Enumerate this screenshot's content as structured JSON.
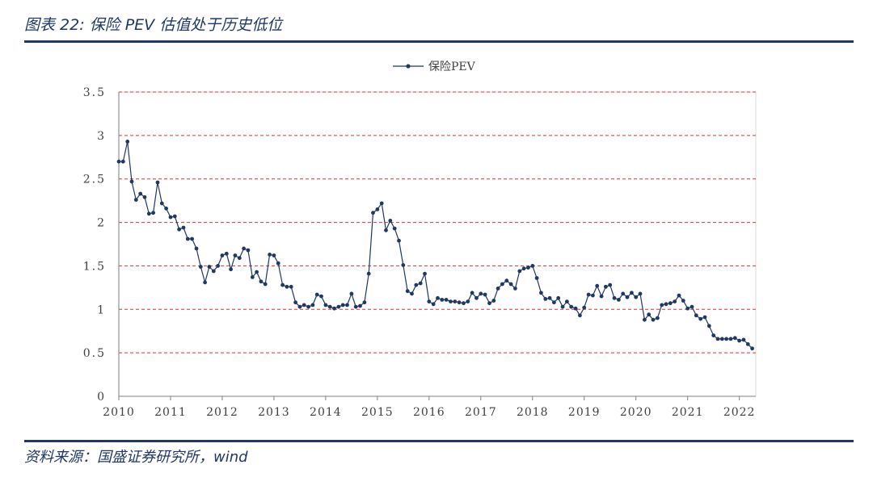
{
  "figure": {
    "title": "图表 22: 保险 PEV 估值处于历史低位",
    "source": "资料来源：国盛证券研究所，wind"
  },
  "colors": {
    "series": "#1f3864",
    "gridline": "#e03030",
    "axis": "#7f7f7f",
    "header_rule": "#1f3864"
  },
  "chart_data": {
    "type": "line",
    "title": "",
    "xlabel": "",
    "ylabel": "",
    "legend_position": "top-center",
    "grid": true,
    "ylim": [
      0,
      3.5
    ],
    "yticks": [
      "0",
      "0.5",
      "1",
      "1.5",
      "2",
      "2.5",
      "3",
      "3.5"
    ],
    "xticks": [
      "2010",
      "2011",
      "2012",
      "2013",
      "2014",
      "2015",
      "2016",
      "2017",
      "2018",
      "2019",
      "2020",
      "2021",
      "2022"
    ],
    "xlim": [
      "2010-01",
      "2022-04"
    ],
    "series": [
      {
        "name": "保险PEV",
        "x": [
          "2010-01",
          "2010-02",
          "2010-03",
          "2010-04",
          "2010-05",
          "2010-06",
          "2010-07",
          "2010-08",
          "2010-09",
          "2010-10",
          "2010-11",
          "2010-12",
          "2011-01",
          "2011-02",
          "2011-03",
          "2011-04",
          "2011-05",
          "2011-06",
          "2011-07",
          "2011-08",
          "2011-09",
          "2011-10",
          "2011-11",
          "2011-12",
          "2012-01",
          "2012-02",
          "2012-03",
          "2012-04",
          "2012-05",
          "2012-06",
          "2012-07",
          "2012-08",
          "2012-09",
          "2012-10",
          "2012-11",
          "2012-12",
          "2013-01",
          "2013-02",
          "2013-03",
          "2013-04",
          "2013-05",
          "2013-06",
          "2013-07",
          "2013-08",
          "2013-09",
          "2013-10",
          "2013-11",
          "2013-12",
          "2014-01",
          "2014-02",
          "2014-03",
          "2014-04",
          "2014-05",
          "2014-06",
          "2014-07",
          "2014-08",
          "2014-09",
          "2014-10",
          "2014-11",
          "2014-12",
          "2015-01",
          "2015-02",
          "2015-03",
          "2015-04",
          "2015-05",
          "2015-06",
          "2015-07",
          "2015-08",
          "2015-09",
          "2015-10",
          "2015-11",
          "2015-12",
          "2016-01",
          "2016-02",
          "2016-03",
          "2016-04",
          "2016-05",
          "2016-06",
          "2016-07",
          "2016-08",
          "2016-09",
          "2016-10",
          "2016-11",
          "2016-12",
          "2017-01",
          "2017-02",
          "2017-03",
          "2017-04",
          "2017-05",
          "2017-06",
          "2017-07",
          "2017-08",
          "2017-09",
          "2017-10",
          "2017-11",
          "2017-12",
          "2018-01",
          "2018-02",
          "2018-03",
          "2018-04",
          "2018-05",
          "2018-06",
          "2018-07",
          "2018-08",
          "2018-09",
          "2018-10",
          "2018-11",
          "2018-12",
          "2019-01",
          "2019-02",
          "2019-03",
          "2019-04",
          "2019-05",
          "2019-06",
          "2019-07",
          "2019-08",
          "2019-09",
          "2019-10",
          "2019-11",
          "2019-12",
          "2020-01",
          "2020-02",
          "2020-03",
          "2020-04",
          "2020-05",
          "2020-06",
          "2020-07",
          "2020-08",
          "2020-09",
          "2020-10",
          "2020-11",
          "2020-12",
          "2021-01",
          "2021-02",
          "2021-03",
          "2021-04",
          "2021-05",
          "2021-06",
          "2021-07",
          "2021-08",
          "2021-09",
          "2021-10",
          "2021-11",
          "2021-12",
          "2022-01",
          "2022-02",
          "2022-03",
          "2022-04"
        ],
        "values": [
          2.7,
          2.7,
          2.93,
          2.47,
          2.26,
          2.33,
          2.29,
          2.1,
          2.11,
          2.46,
          2.22,
          2.16,
          2.06,
          2.07,
          1.92,
          1.94,
          1.81,
          1.81,
          1.7,
          1.49,
          1.31,
          1.49,
          1.44,
          1.5,
          1.62,
          1.64,
          1.46,
          1.62,
          1.59,
          1.7,
          1.68,
          1.37,
          1.43,
          1.32,
          1.29,
          1.63,
          1.62,
          1.53,
          1.28,
          1.26,
          1.26,
          1.08,
          1.03,
          1.05,
          1.03,
          1.05,
          1.17,
          1.15,
          1.05,
          1.03,
          1.01,
          1.03,
          1.05,
          1.05,
          1.18,
          1.03,
          1.04,
          1.08,
          1.41,
          2.11,
          2.15,
          2.22,
          1.91,
          2.02,
          1.93,
          1.79,
          1.51,
          1.21,
          1.18,
          1.28,
          1.3,
          1.41,
          1.09,
          1.06,
          1.13,
          1.11,
          1.11,
          1.09,
          1.09,
          1.08,
          1.07,
          1.09,
          1.19,
          1.13,
          1.18,
          1.17,
          1.07,
          1.1,
          1.24,
          1.29,
          1.33,
          1.29,
          1.24,
          1.44,
          1.47,
          1.48,
          1.5,
          1.36,
          1.19,
          1.12,
          1.13,
          1.08,
          1.13,
          1.03,
          1.09,
          1.03,
          1.01,
          0.93,
          1.02,
          1.17,
          1.16,
          1.27,
          1.15,
          1.26,
          1.28,
          1.13,
          1.11,
          1.18,
          1.14,
          1.19,
          1.14,
          1.18,
          0.88,
          0.94,
          0.88,
          0.9,
          1.05,
          1.06,
          1.07,
          1.09,
          1.16,
          1.1,
          1.01,
          1.03,
          0.93,
          0.89,
          0.91,
          0.81,
          0.7,
          0.66,
          0.66,
          0.66,
          0.66,
          0.67,
          0.64,
          0.65,
          0.6,
          0.55
        ]
      }
    ]
  }
}
